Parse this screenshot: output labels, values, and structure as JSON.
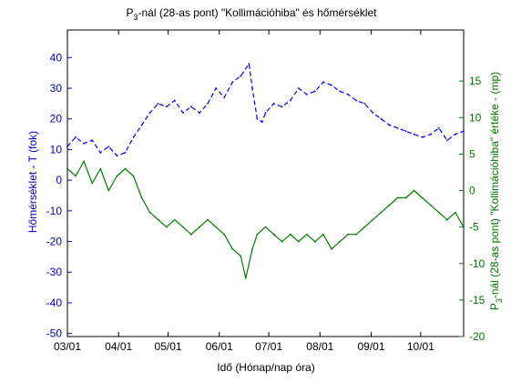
{
  "chart_data": {
    "type": "line",
    "title_parts": [
      "P",
      "3",
      "-nál (28-as pont) \"Kollimációhiba\" és hőmérséklet"
    ],
    "xlabel": "Idő (Hónap/nap óra)",
    "ylabel_left": "Hőmérséklet - T (fok)",
    "ylabel_right_parts": [
      "P",
      "3",
      "-nál (28-as pont) \"Kollimációhiba\" értéke - (mp)"
    ],
    "x_ticks": [
      "03/01",
      "04/01",
      "05/01",
      "06/01",
      "07/01",
      "08/01",
      "09/01",
      "10/01"
    ],
    "x_tick_days": [
      0,
      31,
      61,
      92,
      122,
      153,
      184,
      214
    ],
    "xlim_days": [
      0,
      240
    ],
    "ylim_left": [
      -51,
      49
    ],
    "ylim_right": [
      -20,
      22
    ],
    "yticks_left": [
      -50,
      -40,
      -30,
      -20,
      -10,
      0,
      10,
      20,
      30,
      40
    ],
    "yticks_right": [
      -20,
      -15,
      -10,
      -5,
      0,
      5,
      10,
      15
    ],
    "series": [
      {
        "axis": "left",
        "color": "#0000ff",
        "style": "dashed",
        "x": [
          0,
          5,
          10,
          15,
          20,
          25,
          30,
          35,
          40,
          45,
          50,
          55,
          60,
          65,
          70,
          75,
          80,
          85,
          90,
          95,
          100,
          105,
          110,
          112,
          115,
          118,
          120,
          125,
          130,
          135,
          140,
          145,
          150,
          155,
          160,
          165,
          170,
          175,
          180,
          185,
          190,
          195,
          200,
          205,
          210,
          215,
          220,
          225,
          230,
          235,
          240
        ],
        "y": [
          11,
          14,
          12,
          13,
          9,
          11,
          8,
          9,
          14,
          18,
          22,
          25,
          24,
          26,
          22,
          24,
          22,
          25,
          30,
          27,
          32,
          34,
          38,
          30,
          20,
          19,
          22,
          25,
          24,
          26,
          30,
          28,
          29,
          32,
          31,
          29,
          28,
          26,
          25,
          22,
          20,
          18,
          17,
          16,
          15,
          14,
          15,
          17,
          13,
          15,
          16
        ]
      },
      {
        "axis": "right",
        "color": "#007f00",
        "style": "solid",
        "x": [
          0,
          5,
          10,
          15,
          20,
          25,
          30,
          35,
          40,
          45,
          50,
          55,
          60,
          65,
          70,
          75,
          80,
          85,
          90,
          95,
          100,
          105,
          108,
          112,
          115,
          120,
          125,
          130,
          135,
          140,
          145,
          150,
          155,
          160,
          165,
          170,
          175,
          180,
          185,
          190,
          195,
          200,
          205,
          210,
          215,
          220,
          225,
          230,
          235,
          240
        ],
        "y": [
          3,
          2,
          4,
          1,
          3,
          0,
          2,
          3,
          2,
          -1,
          -3,
          -4,
          -5,
          -4,
          -5,
          -6,
          -5,
          -4,
          -5,
          -6,
          -8,
          -9,
          -12,
          -8,
          -6,
          -5,
          -6,
          -7,
          -6,
          -7,
          -6,
          -7,
          -6,
          -8,
          -7,
          -6,
          -6,
          -5,
          -4,
          -3,
          -2,
          -1,
          -1,
          0,
          -1,
          -2,
          -3,
          -4,
          -3,
          -5
        ]
      }
    ]
  }
}
